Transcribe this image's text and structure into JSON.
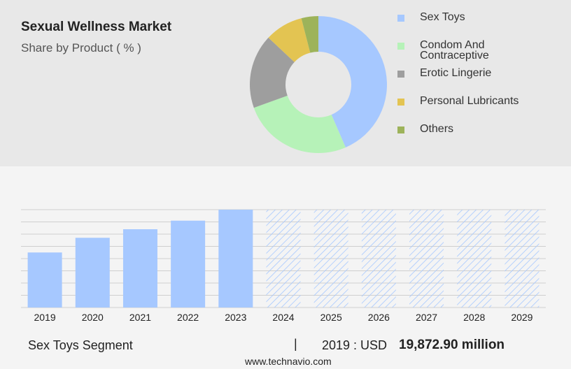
{
  "chart_data": [
    {
      "type": "donut",
      "title": "Sexual Wellness Market",
      "subtitle": "Share by Product ( % )",
      "categories": [
        "Sex Toys",
        "Condom And Contraceptive",
        "Erotic Lingerie",
        "Personal Lubricants",
        "Others"
      ],
      "values": [
        43.5,
        26,
        17.5,
        9,
        4
      ],
      "colors": [
        "#a6c8ff",
        "#b6f2b8",
        "#9e9e9e",
        "#e3c452",
        "#9db35a"
      ]
    },
    {
      "type": "bar",
      "categories": [
        "2019",
        "2020",
        "2021",
        "2022",
        "2023",
        "2024",
        "2025",
        "2026",
        "2027",
        "2028",
        "2029"
      ],
      "values": [
        4.5,
        5.7,
        6.4,
        7.1,
        8,
        null,
        null,
        null,
        null,
        null,
        null
      ],
      "color": "#a6c8ff",
      "ylim": [
        0,
        8
      ],
      "yticks": [
        0,
        1,
        2,
        3,
        4,
        5,
        6,
        7,
        8
      ],
      "grid": true
    }
  ],
  "footer": {
    "segment": "Sex Toys Segment",
    "separator": "|",
    "prefix": "2019 : USD",
    "value": "19,872.90 million",
    "website": "www.technavio.com"
  }
}
